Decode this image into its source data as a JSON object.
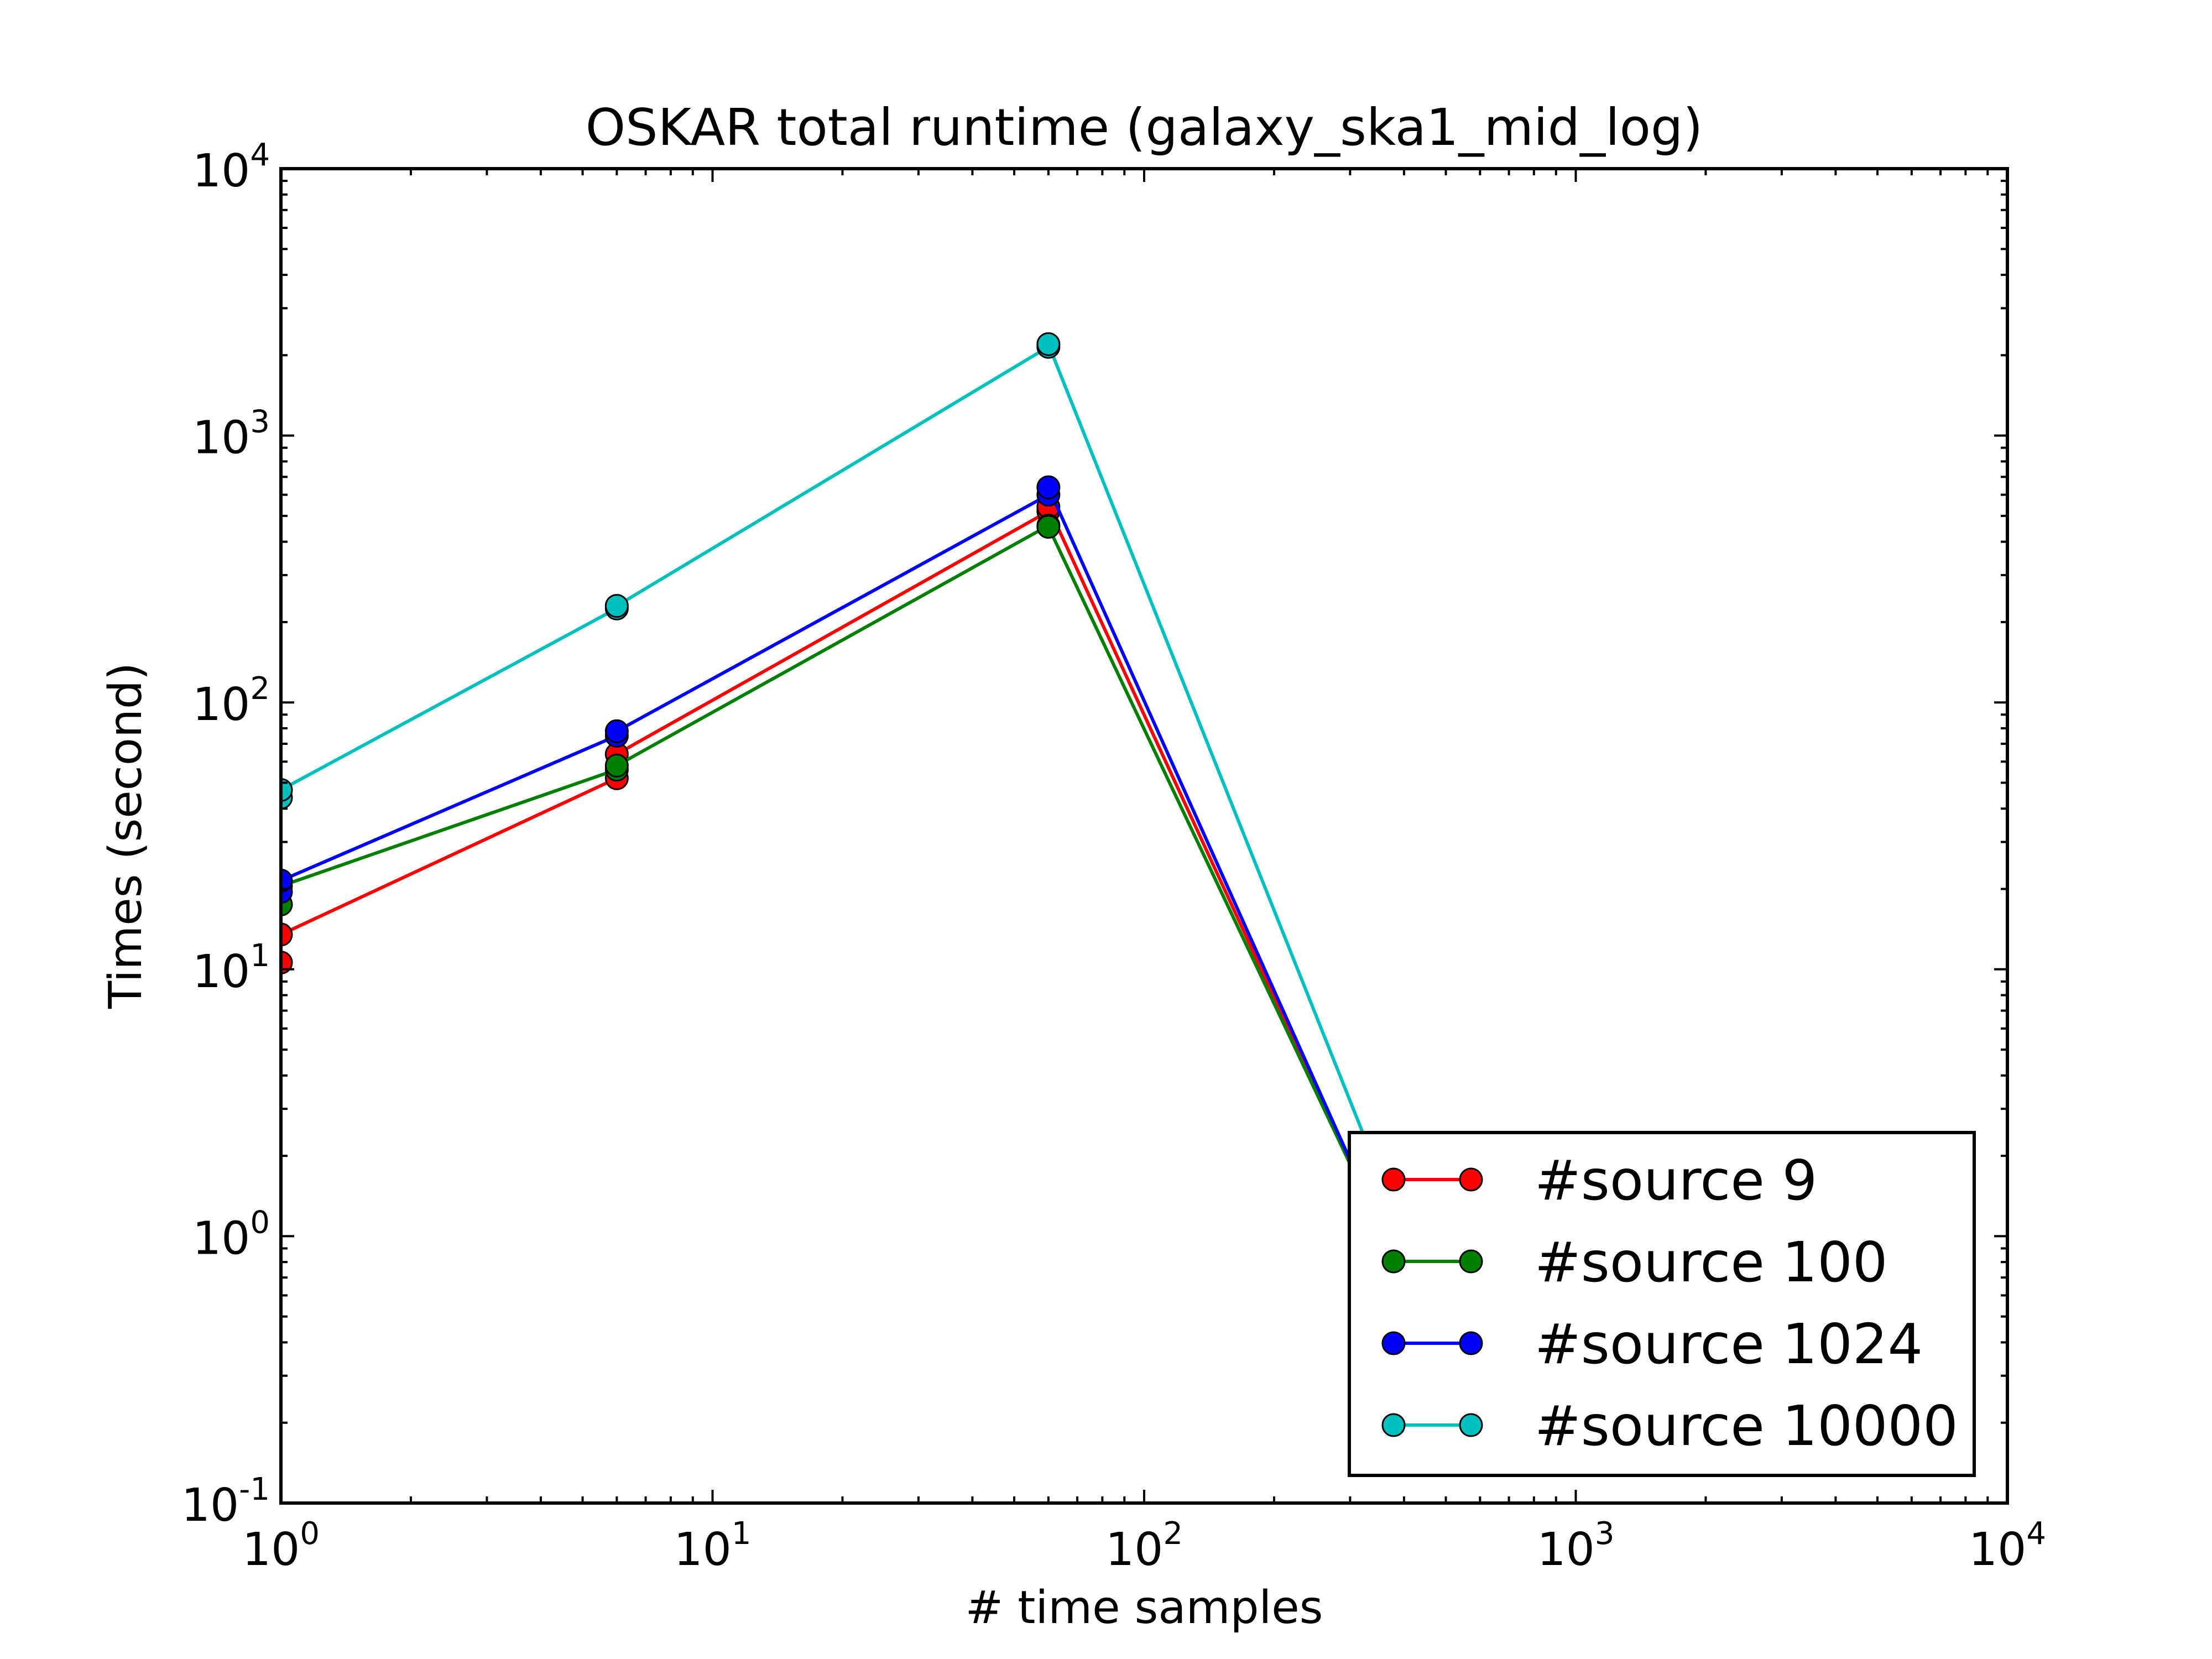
{
  "chart_data": {
    "type": "line",
    "title": "OSKAR total runtime (galaxy_ska1_mid_log)",
    "xlabel": "# time samples",
    "ylabel": "Times (second)",
    "xscale": "log",
    "yscale": "log",
    "xlim": [
      1,
      10000
    ],
    "ylim": [
      0.1,
      10000
    ],
    "x_tick_labels": [
      {
        "base": "10",
        "exp": "0"
      },
      {
        "base": "10",
        "exp": "1"
      },
      {
        "base": "10",
        "exp": "2"
      },
      {
        "base": "10",
        "exp": "3"
      },
      {
        "base": "10",
        "exp": "4"
      }
    ],
    "y_tick_labels": [
      {
        "base": "10",
        "exp": "-1"
      },
      {
        "base": "10",
        "exp": "0"
      },
      {
        "base": "10",
        "exp": "1"
      },
      {
        "base": "10",
        "exp": "2"
      },
      {
        "base": "10",
        "exp": "3"
      },
      {
        "base": "10",
        "exp": "4"
      }
    ],
    "legend_position": "lower-right",
    "series": [
      {
        "name": "#source 9",
        "color": "#ff0000",
        "points": [
          {
            "x": 1,
            "y": 10.6
          },
          {
            "x": 1,
            "y": 13.5
          },
          {
            "x": 6,
            "y": 52
          },
          {
            "x": 6,
            "y": 64
          },
          {
            "x": 60,
            "y": 520
          },
          {
            "x": 60,
            "y": 540
          },
          {
            "x": 360,
            "y": 1.0
          }
        ]
      },
      {
        "name": "#source 100",
        "color": "#007f00",
        "points": [
          {
            "x": 1,
            "y": 17.5
          },
          {
            "x": 1,
            "y": 20.5
          },
          {
            "x": 6,
            "y": 56
          },
          {
            "x": 6,
            "y": 58
          },
          {
            "x": 60,
            "y": 460
          },
          {
            "x": 60,
            "y": 455
          },
          {
            "x": 360,
            "y": 1.0
          }
        ]
      },
      {
        "name": "#source 1024",
        "color": "#0000ff",
        "points": [
          {
            "x": 1,
            "y": 19.5
          },
          {
            "x": 1,
            "y": 21.5
          },
          {
            "x": 6,
            "y": 75
          },
          {
            "x": 6,
            "y": 78
          },
          {
            "x": 60,
            "y": 600
          },
          {
            "x": 60,
            "y": 640
          },
          {
            "x": 360,
            "y": 1.0
          }
        ]
      },
      {
        "name": "#source 10000",
        "color": "#00bfbf",
        "points": [
          {
            "x": 1,
            "y": 44
          },
          {
            "x": 1,
            "y": 47
          },
          {
            "x": 6,
            "y": 225
          },
          {
            "x": 6,
            "y": 230
          },
          {
            "x": 60,
            "y": 2150
          },
          {
            "x": 60,
            "y": 2200
          },
          {
            "x": 400,
            "y": 1.0
          },
          {
            "x": 700,
            "y": 1.0
          }
        ]
      }
    ]
  }
}
